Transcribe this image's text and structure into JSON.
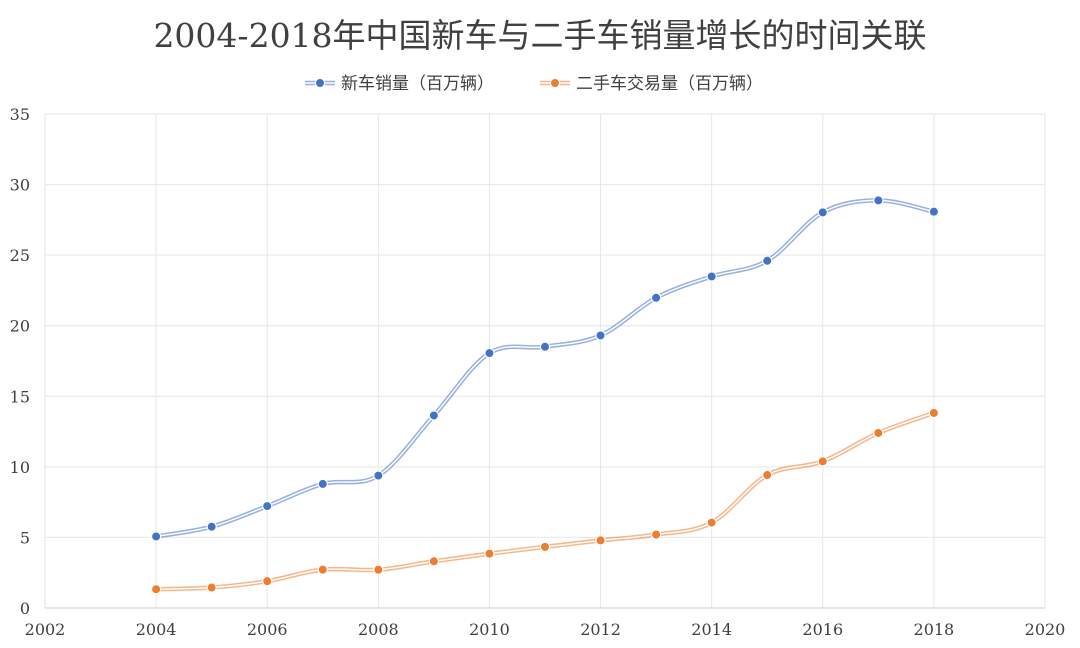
{
  "chart_data": {
    "type": "line",
    "title": "2004-2018年中国新车与二手车销量增长的时间关联",
    "xlabel": "",
    "ylabel": "",
    "x": [
      2004,
      2005,
      2006,
      2007,
      2008,
      2009,
      2010,
      2011,
      2012,
      2013,
      2014,
      2015,
      2016,
      2017,
      2018
    ],
    "xlim": [
      2002,
      2020
    ],
    "xticks": [
      2002,
      2004,
      2006,
      2008,
      2010,
      2012,
      2014,
      2016,
      2018,
      2020
    ],
    "ylim": [
      0,
      35
    ],
    "yticks": [
      0,
      5,
      10,
      15,
      20,
      25,
      30,
      35
    ],
    "grid": true,
    "legend_position": "top",
    "series": [
      {
        "name": "新车销量（百万辆）",
        "color": "#4472C4",
        "values": [
          5.07,
          5.76,
          7.22,
          8.79,
          9.38,
          13.64,
          18.06,
          18.51,
          19.31,
          21.98,
          23.49,
          24.6,
          28.03,
          28.88,
          28.08
        ]
      },
      {
        "name": "二手车交易量（百万辆）",
        "color": "#ED7D31",
        "values": [
          1.33,
          1.45,
          1.9,
          2.72,
          2.71,
          3.31,
          3.85,
          4.33,
          4.79,
          5.2,
          6.05,
          9.42,
          10.39,
          12.4,
          13.82
        ]
      }
    ]
  }
}
